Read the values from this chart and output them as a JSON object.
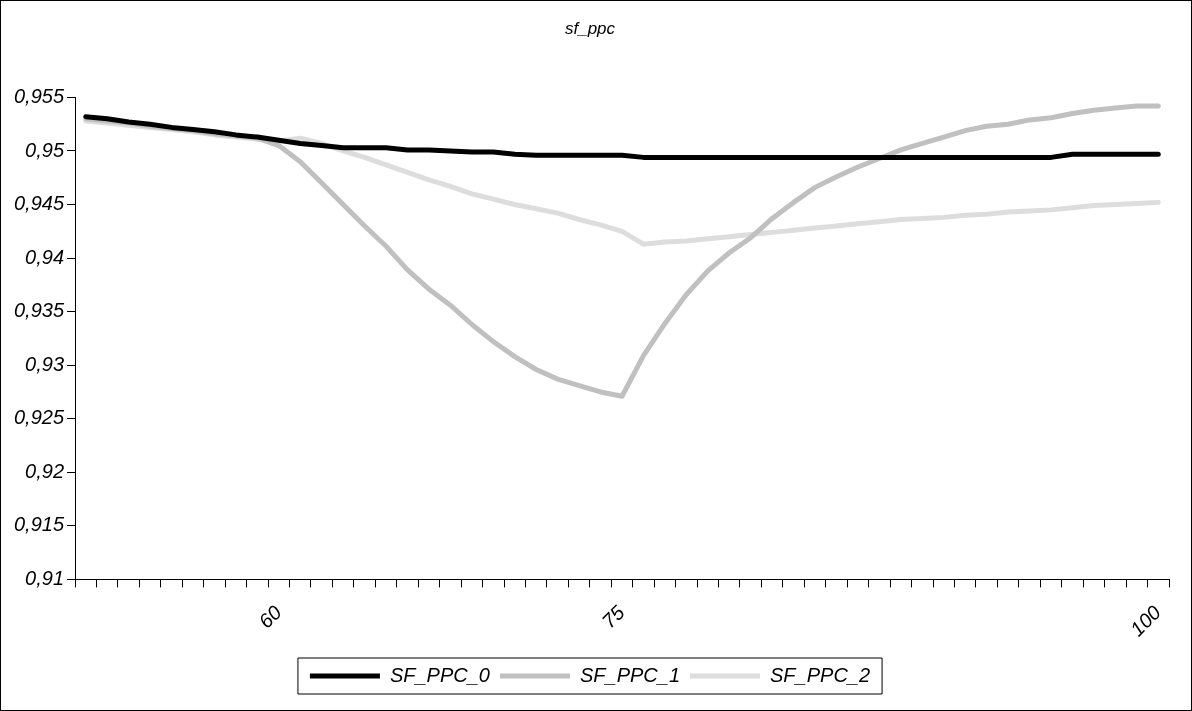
{
  "chart_data": {
    "type": "line",
    "title": "sf_ppc",
    "categories": [
      null,
      null,
      null,
      null,
      null,
      null,
      null,
      null,
      null,
      "60",
      null,
      null,
      null,
      null,
      null,
      null,
      null,
      null,
      null,
      null,
      null,
      null,
      null,
      null,
      null,
      "75",
      null,
      null,
      null,
      null,
      null,
      null,
      null,
      null,
      null,
      null,
      null,
      null,
      null,
      null,
      null,
      null,
      null,
      null,
      null,
      null,
      null,
      null,
      null,
      null,
      "100"
    ],
    "series": [
      {
        "name": "SF_PPC_0",
        "color": "#000000",
        "values": [
          0.9532,
          0.953,
          0.9527,
          0.9525,
          0.9522,
          0.952,
          0.9518,
          0.9515,
          0.9513,
          0.951,
          0.9507,
          0.9505,
          0.9503,
          0.9503,
          0.9503,
          0.9501,
          0.9501,
          0.95,
          0.9499,
          0.9499,
          0.9497,
          0.9496,
          0.9496,
          0.9496,
          0.9496,
          0.9496,
          0.9494,
          0.9494,
          0.9494,
          0.9494,
          0.9494,
          0.9494,
          0.9494,
          0.9494,
          0.9494,
          0.9494,
          0.9494,
          0.9494,
          0.9494,
          0.9494,
          0.9494,
          0.9494,
          0.9494,
          0.9494,
          0.9494,
          0.9494,
          0.9497,
          0.9497,
          0.9497,
          0.9497,
          0.9497
        ]
      },
      {
        "name": "SF_PPC_1",
        "color": "#c0c0c0",
        "values": [
          0.953,
          0.9528,
          0.9526,
          0.9523,
          0.9521,
          0.9519,
          0.9516,
          0.9514,
          0.9512,
          0.9505,
          0.949,
          0.947,
          0.945,
          0.943,
          0.9411,
          0.9389,
          0.9371,
          0.9356,
          0.9338,
          0.9322,
          0.9308,
          0.9296,
          0.9287,
          0.9281,
          0.9275,
          0.9271,
          0.9309,
          0.9339,
          0.9366,
          0.9388,
          0.9405,
          0.9419,
          0.9437,
          0.9452,
          0.9466,
          0.9476,
          0.9485,
          0.9493,
          0.9501,
          0.9507,
          0.9513,
          0.9519,
          0.9523,
          0.9525,
          0.9529,
          0.9531,
          0.9535,
          0.9538,
          0.954,
          0.9542,
          0.9542
        ]
      },
      {
        "name": "SF_PPC_2",
        "color": "#dddddd",
        "values": [
          0.9528,
          0.9526,
          0.9524,
          0.9522,
          0.952,
          0.9518,
          0.9515,
          0.9513,
          0.9511,
          0.9509,
          0.9512,
          0.9507,
          0.95,
          0.9494,
          0.9487,
          0.948,
          0.9473,
          0.9467,
          0.946,
          0.9455,
          0.945,
          0.9446,
          0.9442,
          0.9436,
          0.9431,
          0.9425,
          0.9413,
          0.9415,
          0.9416,
          0.9418,
          0.942,
          0.9422,
          0.9424,
          0.9426,
          0.9428,
          0.943,
          0.9432,
          0.9434,
          0.9436,
          0.9437,
          0.9438,
          0.944,
          0.9441,
          0.9443,
          0.9444,
          0.9445,
          0.9447,
          0.9449,
          0.945,
          0.9451,
          0.9452
        ]
      }
    ],
    "ylim": [
      0.91,
      0.955
    ],
    "yticks": [
      {
        "value": 0.91,
        "label": "0,91"
      },
      {
        "value": 0.915,
        "label": "0,915"
      },
      {
        "value": 0.92,
        "label": "0,92"
      },
      {
        "value": 0.925,
        "label": "0,925"
      },
      {
        "value": 0.93,
        "label": "0,93"
      },
      {
        "value": 0.935,
        "label": "0,935"
      },
      {
        "value": 0.94,
        "label": "0,94"
      },
      {
        "value": 0.945,
        "label": "0,945"
      },
      {
        "value": 0.95,
        "label": "0,95"
      },
      {
        "value": 0.955,
        "label": "0,955"
      }
    ],
    "grid": false,
    "legend": "bottom",
    "marker": "none",
    "line_style": "solid"
  }
}
